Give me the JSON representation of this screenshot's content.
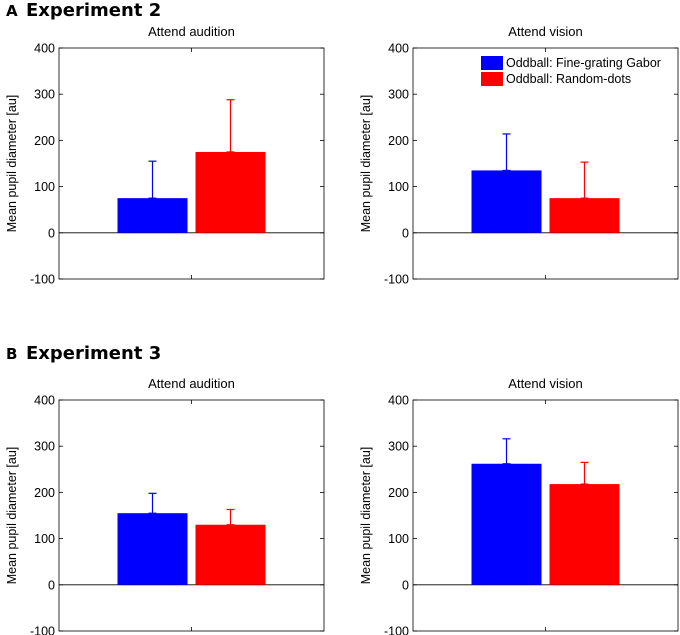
{
  "figure": {
    "sections": [
      {
        "letter": "A",
        "title": "Experiment 2"
      },
      {
        "letter": "B",
        "title": "Experiment 3"
      }
    ],
    "legend": {
      "entries": [
        {
          "label": "Oddball: Fine-grating Gabor",
          "color": "#0000ff"
        },
        {
          "label": "Oddball: Random-dots",
          "color": "#ff0000"
        }
      ]
    }
  },
  "chart_data": [
    {
      "type": "bar",
      "experiment": "Experiment 2",
      "title": "Attend audition",
      "ylabel": "Mean pupil diameter [au]",
      "ylim": [
        -100,
        400
      ],
      "yticks": [
        -100,
        0,
        100,
        200,
        300,
        400
      ],
      "series": [
        {
          "name": "Oddball: Fine-grating Gabor",
          "color": "#0000ff",
          "value": 75,
          "error_top": 155
        },
        {
          "name": "Oddball: Random-dots",
          "color": "#ff0000",
          "value": 175,
          "error_top": 288
        }
      ]
    },
    {
      "type": "bar",
      "experiment": "Experiment 2",
      "title": "Attend vision",
      "ylabel": "Mean pupil diameter [au]",
      "ylim": [
        -100,
        400
      ],
      "yticks": [
        -100,
        0,
        100,
        200,
        300,
        400
      ],
      "series": [
        {
          "name": "Oddball: Fine-grating Gabor",
          "color": "#0000ff",
          "value": 135,
          "error_top": 214
        },
        {
          "name": "Oddball: Random-dots",
          "color": "#ff0000",
          "value": 75,
          "error_top": 153
        }
      ]
    },
    {
      "type": "bar",
      "experiment": "Experiment 3",
      "title": "Attend audition",
      "ylabel": "Mean pupil diameter [au]",
      "ylim": [
        -100,
        400
      ],
      "yticks": [
        -100,
        0,
        100,
        200,
        300,
        400
      ],
      "series": [
        {
          "name": "Oddball: Fine-grating Gabor",
          "color": "#0000ff",
          "value": 155,
          "error_top": 198
        },
        {
          "name": "Oddball: Random-dots",
          "color": "#ff0000",
          "value": 130,
          "error_top": 163
        }
      ]
    },
    {
      "type": "bar",
      "experiment": "Experiment 3",
      "title": "Attend vision",
      "ylabel": "Mean pupil diameter [au]",
      "ylim": [
        -100,
        400
      ],
      "yticks": [
        -100,
        0,
        100,
        200,
        300,
        400
      ],
      "series": [
        {
          "name": "Oddball: Fine-grating Gabor",
          "color": "#0000ff",
          "value": 262,
          "error_top": 316
        },
        {
          "name": "Oddball: Random-dots",
          "color": "#ff0000",
          "value": 218,
          "error_top": 265
        }
      ]
    }
  ]
}
